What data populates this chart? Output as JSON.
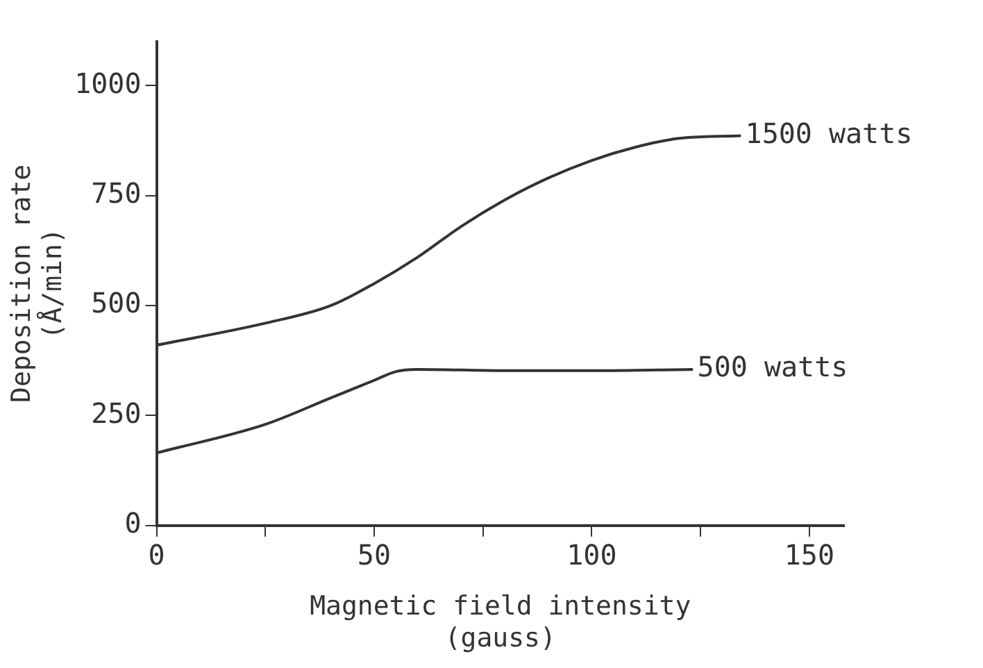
{
  "chart_data": {
    "type": "line",
    "xlabel": "Magnetic field intensity\n(gauss)",
    "ylabel": "Deposition rate\n(Å/min)",
    "xlim": [
      0,
      158
    ],
    "xticks": [
      0,
      {
        "value": 25,
        "label": null
      },
      50,
      {
        "value": 75,
        "label": null
      },
      100,
      {
        "value": 125,
        "label": null
      },
      150
    ],
    "ylim": [
      0,
      1100
    ],
    "yticks": [
      0,
      250,
      500,
      750,
      1000
    ],
    "grid": false,
    "legend": false,
    "marker": "none",
    "line_style": "solid",
    "series": [
      {
        "name": "1500 watts",
        "color": "#333333",
        "x": [
          0,
          25,
          40,
          50,
          60,
          70,
          80,
          90,
          100,
          110,
          120,
          134
        ],
        "values": [
          410,
          460,
          500,
          550,
          610,
          680,
          740,
          790,
          830,
          860,
          880,
          886
        ]
      },
      {
        "name": "500 watts",
        "color": "#333333",
        "x": [
          0,
          25,
          40,
          50,
          55,
          60,
          80,
          100,
          123
        ],
        "values": [
          165,
          230,
          290,
          330,
          350,
          355,
          352,
          352,
          355
        ]
      }
    ]
  }
}
